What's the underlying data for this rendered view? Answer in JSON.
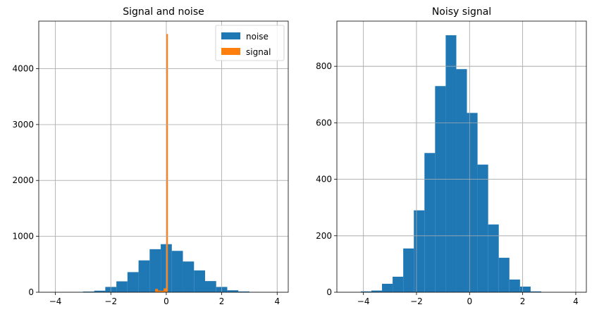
{
  "chart_data": [
    {
      "type": "bar",
      "title": "Signal and noise",
      "xlabel": "",
      "ylabel": "",
      "xlim": [
        -4.6,
        4.4
      ],
      "ylim": [
        0,
        4850
      ],
      "xticks": [
        -4,
        -2,
        0,
        2,
        4
      ],
      "yticks": [
        0,
        1000,
        2000,
        3000,
        4000
      ],
      "grid": true,
      "legend": "top-right",
      "series": [
        {
          "name": "noise",
          "kind": "histogram",
          "color": "#1f77b4",
          "bin_edges": [
            -4.2,
            -3.8,
            -3.4,
            -3.0,
            -2.6,
            -2.2,
            -1.8,
            -1.4,
            -1.0,
            -0.6,
            -0.2,
            0.2,
            0.6,
            1.0,
            1.4,
            1.8,
            2.2,
            2.6,
            3.0,
            3.4,
            3.8
          ],
          "counts": [
            2,
            3,
            5,
            12,
            28,
            95,
            195,
            360,
            570,
            770,
            860,
            740,
            550,
            390,
            200,
            95,
            35,
            14,
            4,
            1
          ]
        },
        {
          "name": "signal",
          "kind": "histogram",
          "color": "#ff7f0e",
          "bin_edges": [
            -0.4,
            -0.3,
            -0.2,
            -0.1,
            0.0,
            0.06,
            0.1
          ],
          "counts": [
            60,
            30,
            25,
            70,
            4620,
            0
          ]
        }
      ]
    },
    {
      "type": "bar",
      "title": "Noisy signal",
      "xlabel": "",
      "ylabel": "",
      "xlim": [
        -5.0,
        4.4
      ],
      "ylim": [
        0,
        960
      ],
      "xticks": [
        -4,
        -2,
        0,
        2,
        4
      ],
      "yticks": [
        0,
        200,
        400,
        600,
        800
      ],
      "grid": true,
      "series": [
        {
          "name": "",
          "kind": "histogram",
          "color": "#1f77b4",
          "bin_edges": [
            -4.5,
            -4.1,
            -3.7,
            -3.3,
            -2.9,
            -2.5,
            -2.1,
            -1.7,
            -1.3,
            -0.9,
            -0.5,
            -0.1,
            0.3,
            0.7,
            1.1,
            1.5,
            1.9,
            2.3,
            2.7,
            3.1,
            3.5
          ],
          "counts": [
            0,
            3,
            6,
            30,
            55,
            155,
            290,
            493,
            730,
            910,
            790,
            635,
            452,
            240,
            122,
            45,
            20,
            3,
            0,
            0
          ]
        }
      ]
    }
  ]
}
